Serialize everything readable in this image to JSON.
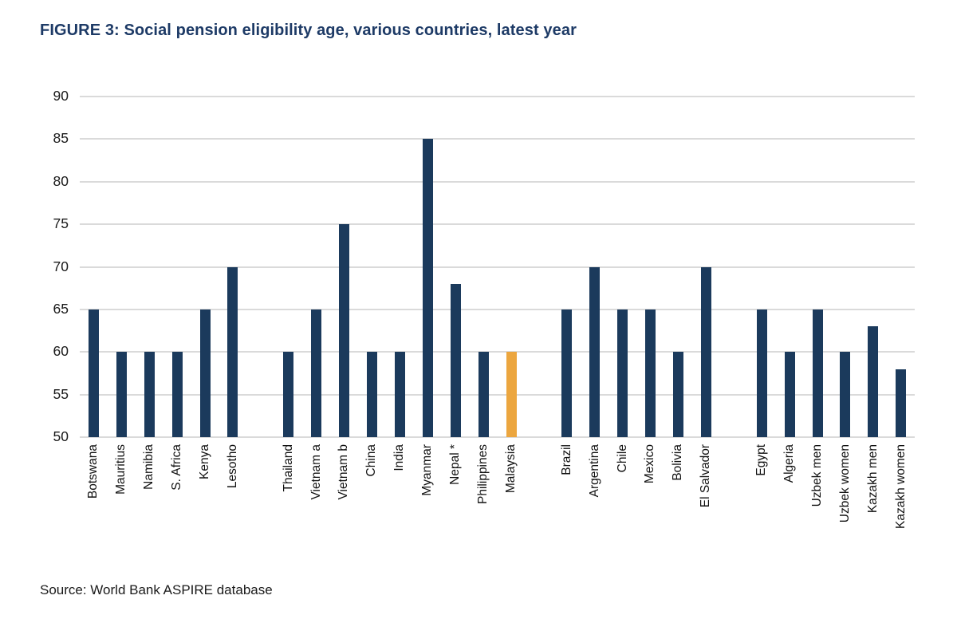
{
  "figure": {
    "title": "FIGURE 3: Social pension eligibility age, various countries, latest year",
    "source": "Source: World Bank ASPIRE database"
  },
  "chart_data": {
    "type": "bar",
    "title": "FIGURE 3: Social pension eligibility age, various countries, latest year",
    "source": "Source: World Bank ASPIRE database",
    "xlabel": "",
    "ylabel": "",
    "ylim": [
      50,
      90
    ],
    "yticks": [
      90,
      85,
      80,
      75,
      70,
      65,
      60,
      55,
      50
    ],
    "grid": true,
    "legend": false,
    "bar_color": "#1b3a5c",
    "highlight_color": "#eca63f",
    "gridline_color": "#dadada",
    "highlight_category": "Malaysia",
    "groups": [
      {
        "categories": [
          "Botswana",
          "Mauritius",
          "Namibia",
          "S. Africa",
          "Kenya",
          "Lesotho"
        ],
        "values": [
          65,
          60,
          60,
          60,
          65,
          70
        ]
      },
      {
        "categories": [
          "Thailand",
          "Vietnam a",
          "Vietnam b",
          "China",
          "India",
          "Myanmar",
          "Nepal *",
          "Philippines",
          "Malaysia"
        ],
        "values": [
          60,
          65,
          75,
          60,
          60,
          85,
          68,
          60,
          60
        ]
      },
      {
        "categories": [
          "Brazil",
          "Argentina",
          "Chile",
          "Mexico",
          "Bolivia",
          "El Salvador"
        ],
        "values": [
          65,
          70,
          65,
          65,
          60,
          70
        ]
      },
      {
        "categories": [
          "Egypt",
          "Algeria",
          "Uzbek men",
          "Uzbek women",
          "Kazakh men",
          "Kazakh women"
        ],
        "values": [
          65,
          60,
          65,
          60,
          63,
          58
        ]
      }
    ]
  }
}
